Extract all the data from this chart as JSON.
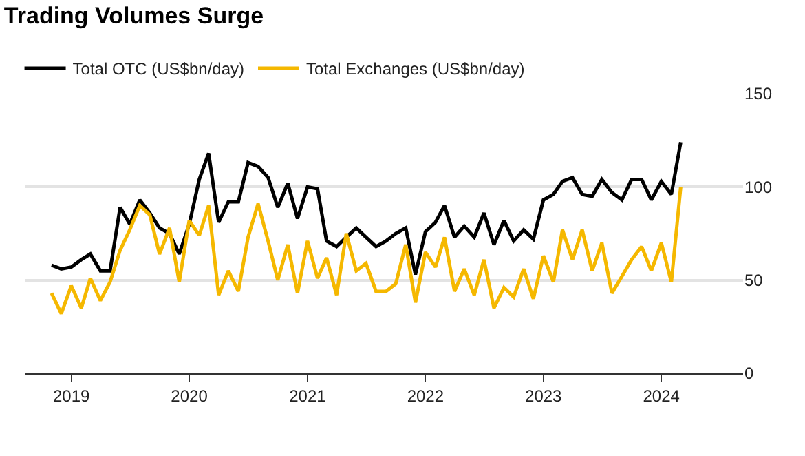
{
  "chart_data": {
    "type": "line",
    "title": "Trading Volumes Surge",
    "x": [
      "2018-11",
      "2018-12",
      "2019-01",
      "2019-02",
      "2019-03",
      "2019-04",
      "2019-05",
      "2019-06",
      "2019-07",
      "2019-08",
      "2019-09",
      "2019-10",
      "2019-11",
      "2019-12",
      "2020-01",
      "2020-02",
      "2020-03",
      "2020-04",
      "2020-05",
      "2020-06",
      "2020-07",
      "2020-08",
      "2020-09",
      "2020-10",
      "2020-11",
      "2020-12",
      "2021-01",
      "2021-02",
      "2021-03",
      "2021-04",
      "2021-05",
      "2021-06",
      "2021-07",
      "2021-08",
      "2021-09",
      "2021-10",
      "2021-11",
      "2021-12",
      "2022-01",
      "2022-02",
      "2022-03",
      "2022-04",
      "2022-05",
      "2022-06",
      "2022-07",
      "2022-08",
      "2022-09",
      "2022-10",
      "2022-11",
      "2022-12",
      "2023-01",
      "2023-02",
      "2023-03",
      "2023-04",
      "2023-05",
      "2023-06",
      "2023-07",
      "2023-08",
      "2023-09",
      "2023-10",
      "2023-11",
      "2023-12",
      "2024-01",
      "2024-02",
      "2024-03"
    ],
    "series": [
      {
        "name": "Total OTC (US$bn/day)",
        "color": "#000000",
        "values": [
          58,
          56,
          57,
          61,
          64,
          55,
          55,
          89,
          80,
          93,
          86,
          78,
          75,
          64,
          80,
          104,
          118,
          81,
          92,
          92,
          113,
          111,
          105,
          89,
          102,
          83,
          100,
          99,
          71,
          68,
          73,
          78,
          73,
          68,
          71,
          75,
          78,
          53,
          76,
          81,
          90,
          73,
          79,
          73,
          86,
          69,
          82,
          71,
          77,
          72,
          93,
          96,
          103,
          105,
          96,
          95,
          104,
          97,
          93,
          104,
          104,
          93,
          103,
          96,
          124
        ]
      },
      {
        "name": "Total Exchanges (US$bn/day)",
        "color": "#f5b800",
        "values": [
          43,
          32,
          47,
          35,
          51,
          39,
          49,
          66,
          77,
          90,
          85,
          64,
          78,
          49,
          82,
          74,
          90,
          42,
          55,
          44,
          73,
          91,
          71,
          50,
          69,
          43,
          71,
          51,
          62,
          42,
          75,
          55,
          59,
          44,
          44,
          48,
          69,
          38,
          65,
          57,
          73,
          44,
          56,
          42,
          61,
          35,
          46,
          41,
          56,
          40,
          63,
          49,
          77,
          61,
          77,
          55,
          70,
          43,
          52,
          61,
          68,
          55,
          70,
          49,
          100
        ]
      }
    ],
    "xlim": [
      "2018-08-10",
      "2024-09-10"
    ],
    "xticks": [
      {
        "value": "2019-01-01",
        "label": "2019"
      },
      {
        "value": "2020-01-01",
        "label": "2020"
      },
      {
        "value": "2021-01-01",
        "label": "2021"
      },
      {
        "value": "2022-01-01",
        "label": "2022"
      },
      {
        "value": "2023-01-01",
        "label": "2023"
      },
      {
        "value": "2024-01-01",
        "label": "2024"
      }
    ],
    "ylim": [
      0,
      150
    ],
    "yticks": [
      0,
      50,
      100,
      150
    ],
    "grid": "y",
    "legend": "top left",
    "marker": "none",
    "line_style": "solid"
  }
}
